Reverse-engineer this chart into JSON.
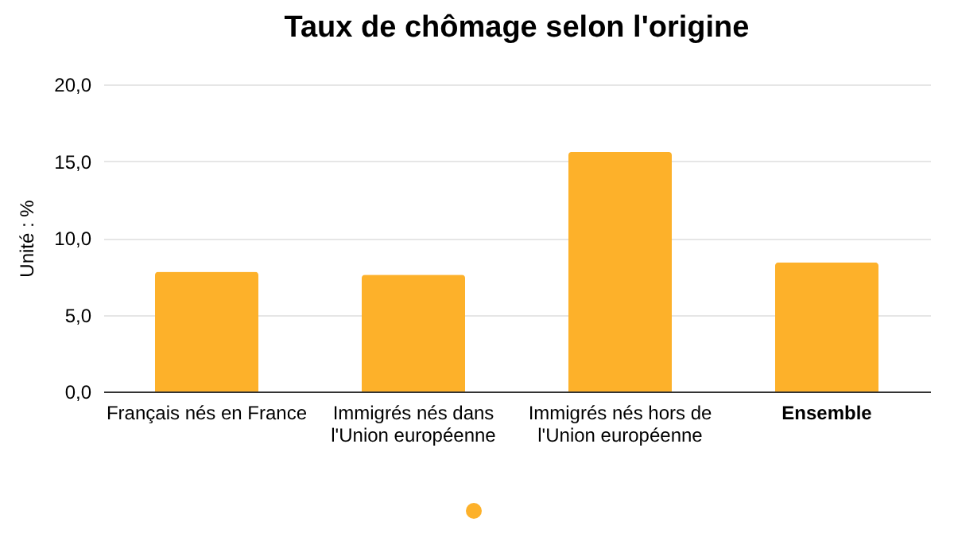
{
  "chart_data": {
    "type": "bar",
    "title": "Taux de chômage selon l'origine",
    "ylabel": "Unité : %",
    "categories": [
      "Français nés en France",
      "Immigrés nés dans l'Union européenne",
      "Immigrés nés hors de l'Union européenne",
      "Ensemble"
    ],
    "series": [
      {
        "color": "#fdb12a",
        "values": [
          7.8,
          7.6,
          15.6,
          8.4
        ]
      }
    ],
    "ylim": [
      0,
      20
    ],
    "yticks": [
      {
        "value": 0,
        "label": "0,0"
      },
      {
        "value": 5,
        "label": "5,0"
      },
      {
        "value": 10,
        "label": "10,0"
      },
      {
        "value": 15,
        "label": "15,0"
      },
      {
        "value": 20,
        "label": "20,0"
      }
    ],
    "grid": "y"
  }
}
